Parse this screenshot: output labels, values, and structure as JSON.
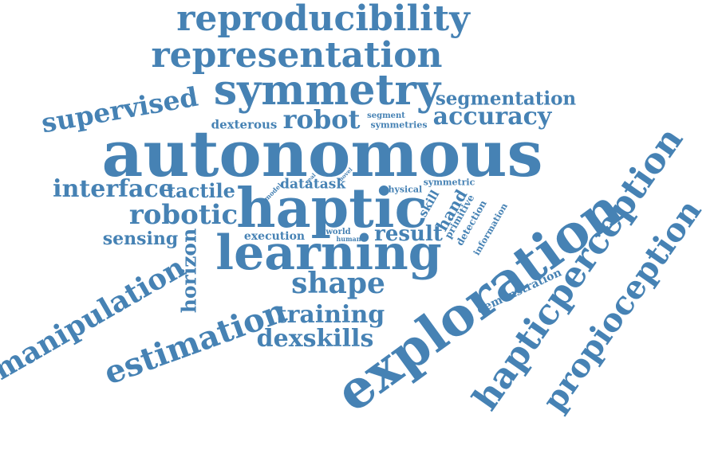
{
  "color": "#4682b4",
  "words": {
    "reproducibility": "reproducibility",
    "representation": "representation",
    "symmetry": "symmetry",
    "segmentation": "segmentation",
    "supervised": "supervised",
    "robot": "robot",
    "accuracy": "accuracy",
    "dexterous": "dexterous",
    "segment": "segment",
    "symmetries": "symmetries",
    "autonomous": "autonomous",
    "interface": "interface",
    "tactile": "tactile",
    "model": "model",
    "data": "data",
    "real": "real",
    "task": "task",
    "novel": "novel",
    "haptic": "haptic",
    "physical": "physical",
    "symmetric": "symmetric",
    "skill": "skill",
    "hand": "hand",
    "primitive": "primitive",
    "detection": "detection",
    "information": "information",
    "robotic": "robotic",
    "sensing": "sensing",
    "horizon": "horizon",
    "execution": "execution",
    "world": "world",
    "human": "human",
    "result": "result",
    "learning": "learning",
    "manipulation": "manipulation",
    "shape": "shape",
    "estimation": "estimation",
    "training": "training",
    "dexskills": "dexskills",
    "demonstration": "demonstration",
    "exploration": "exploration",
    "hapticperception": "hapticperception",
    "propioception": "propioception"
  }
}
